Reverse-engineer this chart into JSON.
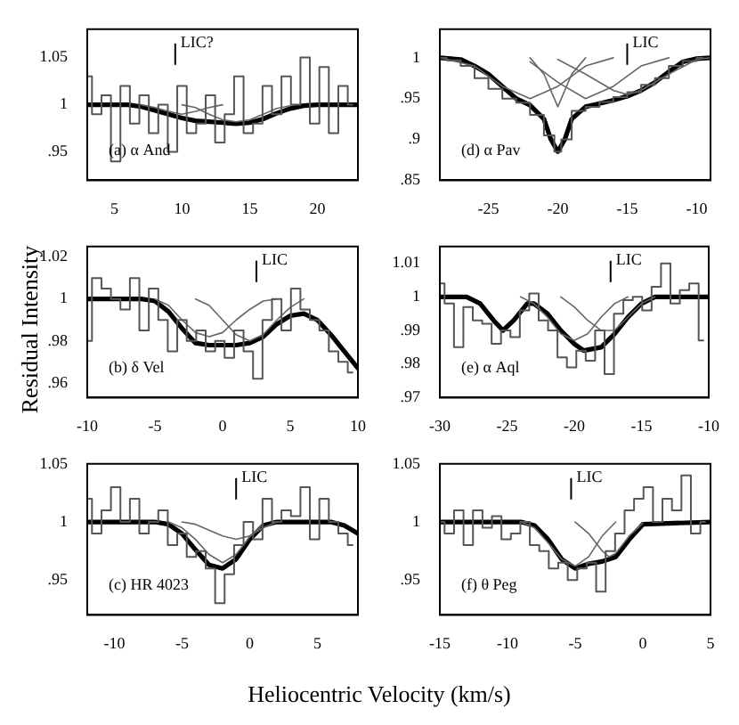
{
  "chart_data": [
    {
      "type": "line",
      "xlim": [
        3,
        23
      ],
      "xticks": [
        5,
        10,
        15,
        20
      ],
      "ylim": [
        0.92,
        1.08
      ],
      "yticks": [
        {
          "value": 0.95,
          "label": ".95"
        },
        1,
        1.05
      ],
      "grid": false,
      "legend": false,
      "annotations": [
        "(a) α And"
      ],
      "ref_lines": [
        {
          "axis": "x",
          "value": 9.5,
          "label": "LIC?"
        }
      ],
      "series": [
        {
          "type": "step",
          "color": "#555555",
          "x": [
            3,
            3.7,
            4.4,
            5.1,
            5.8,
            6.5,
            7.2,
            7.9,
            8.6,
            9.3,
            10,
            10.7,
            11.4,
            12.1,
            12.8,
            13.5,
            14.2,
            14.9,
            15.6,
            16.3,
            17,
            17.7,
            18.4,
            19.1,
            19.8,
            20.5,
            21.2,
            21.9,
            22.6
          ],
          "values": [
            1.03,
            0.99,
            1.01,
            0.94,
            1.02,
            0.98,
            1.01,
            0.97,
            1.0,
            0.95,
            1.02,
            0.97,
            0.98,
            1.01,
            0.96,
            0.99,
            1.03,
            0.97,
            0.98,
            1.02,
            0.99,
            1.03,
            1.0,
            1.05,
            0.98,
            1.04,
            0.97,
            1.02,
            1.0
          ]
        },
        {
          "type": "line",
          "color": "#666666",
          "x": [
            7,
            8,
            9,
            10,
            11,
            12,
            13
          ],
          "values": [
            1,
            0.997,
            0.993,
            0.99,
            0.993,
            0.997,
            1
          ]
        },
        {
          "type": "line",
          "color": "#666666",
          "x": [
            10,
            11,
            12,
            13,
            14,
            15,
            16,
            17,
            18
          ],
          "values": [
            1,
            0.997,
            0.99,
            0.984,
            0.982,
            0.984,
            0.99,
            0.996,
            0.999
          ]
        },
        {
          "type": "line",
          "color": "#000000",
          "x": [
            3,
            6,
            7,
            8,
            9,
            10,
            11,
            12,
            13,
            14,
            15,
            16,
            17,
            18,
            19,
            20,
            23
          ],
          "values": [
            1,
            1,
            0.998,
            0.994,
            0.99,
            0.986,
            0.983,
            0.982,
            0.981,
            0.98,
            0.981,
            0.985,
            0.991,
            0.996,
            0.999,
            1,
            1
          ]
        }
      ]
    },
    {
      "type": "line",
      "xlim": [
        -28.5,
        -9
      ],
      "xticks": [
        -25,
        -20,
        -15,
        -10
      ],
      "ylim": [
        0.85,
        1.035
      ],
      "yticks": [
        {
          "value": 0.85,
          "label": ".85"
        },
        {
          "value": 0.9,
          "label": ".9"
        },
        {
          "value": 0.95,
          "label": ".95"
        },
        1
      ],
      "grid": false,
      "legend": false,
      "annotations": [
        "(d) α Pav"
      ],
      "ref_lines": [
        {
          "axis": "x",
          "value": -15,
          "label": "LIC"
        }
      ],
      "series": [
        {
          "type": "step",
          "color": "#555555",
          "x": [
            -28.5,
            -27.5,
            -26.5,
            -25.5,
            -24.5,
            -23.5,
            -22.5,
            -21.5,
            -20.5,
            -20,
            -19.5,
            -18.5,
            -17.5,
            -16.5,
            -15.5,
            -14.5,
            -13.5,
            -12.5,
            -11.5,
            -10.5,
            -9.5
          ],
          "values": [
            1.0,
            0.997,
            0.99,
            0.975,
            0.962,
            0.95,
            0.945,
            0.93,
            0.905,
            0.885,
            0.9,
            0.935,
            0.94,
            0.946,
            0.952,
            0.958,
            0.967,
            0.975,
            0.99,
            0.996,
            1.0
          ]
        },
        {
          "type": "line",
          "color": "#666666",
          "x": [
            -28.5,
            -26,
            -24,
            -22,
            -20,
            -18,
            -16
          ],
          "values": [
            1,
            0.99,
            0.965,
            0.95,
            0.965,
            0.99,
            1
          ]
        },
        {
          "type": "line",
          "color": "#666666",
          "x": [
            -22,
            -21,
            -20,
            -19,
            -18
          ],
          "values": [
            1,
            0.98,
            0.94,
            0.98,
            1
          ]
        },
        {
          "type": "line",
          "color": "#666666",
          "x": [
            -22,
            -20,
            -18,
            -16,
            -14,
            -12
          ],
          "values": [
            0.995,
            0.97,
            0.95,
            0.965,
            0.99,
            1
          ]
        },
        {
          "type": "line",
          "color": "#666666",
          "x": [
            -20,
            -18,
            -16,
            -15,
            -14,
            -12,
            -10,
            -9
          ],
          "values": [
            0.998,
            0.98,
            0.96,
            0.955,
            0.96,
            0.98,
            0.998,
            1
          ]
        },
        {
          "type": "line",
          "color": "#000000",
          "x": [
            -28.5,
            -27,
            -26,
            -25,
            -24,
            -23,
            -22,
            -21,
            -20.5,
            -20,
            -19.5,
            -19,
            -18,
            -17,
            -16,
            -15,
            -14,
            -13,
            -12,
            -11,
            -10,
            -9
          ],
          "values": [
            1,
            0.998,
            0.99,
            0.98,
            0.965,
            0.95,
            0.942,
            0.925,
            0.9,
            0.885,
            0.9,
            0.925,
            0.94,
            0.944,
            0.948,
            0.953,
            0.96,
            0.97,
            0.983,
            0.995,
            0.999,
            1
          ]
        }
      ]
    },
    {
      "type": "line",
      "ylabel": "Residual Intensity",
      "xlim": [
        -10,
        10
      ],
      "xticks": [
        -10,
        -5,
        0,
        5,
        10
      ],
      "ylim": [
        0.953,
        1.025
      ],
      "yticks": [
        {
          "value": 0.96,
          "label": ".96"
        },
        {
          "value": 0.98,
          "label": ".98"
        },
        1,
        1.02
      ],
      "grid": false,
      "legend": false,
      "annotations": [
        "(b) δ Vel"
      ],
      "ref_lines": [
        {
          "axis": "x",
          "value": 2.5,
          "label": "LIC"
        }
      ],
      "series": [
        {
          "type": "step",
          "color": "#555555",
          "x": [
            -10,
            -9.3,
            -8.6,
            -7.9,
            -7.2,
            -6.5,
            -5.8,
            -5.1,
            -4.4,
            -3.7,
            -3,
            -2.3,
            -1.6,
            -0.9,
            -0.2,
            0.5,
            1.2,
            1.9,
            2.6,
            3.3,
            4,
            4.7,
            5.4,
            6.1,
            6.8,
            7.5,
            8.2,
            8.9,
            9.6
          ],
          "values": [
            0.98,
            1.01,
            1.005,
            1.0,
            0.995,
            1.01,
            0.985,
            1.005,
            0.99,
            0.975,
            0.99,
            0.98,
            0.985,
            0.975,
            0.98,
            0.972,
            0.985,
            0.975,
            0.962,
            0.99,
            1.0,
            0.985,
            1.005,
            0.995,
            0.99,
            0.985,
            0.975,
            0.97,
            0.965
          ]
        },
        {
          "type": "line",
          "color": "#666666",
          "x": [
            -5,
            -4,
            -3,
            -2,
            -1,
            0,
            1,
            2,
            3,
            4
          ],
          "values": [
            1,
            0.997,
            0.99,
            0.984,
            0.982,
            0.984,
            0.99,
            0.995,
            0.999,
            1
          ]
        },
        {
          "type": "line",
          "color": "#666666",
          "x": [
            -2,
            -1,
            0,
            1,
            2,
            3,
            4,
            5,
            6
          ],
          "values": [
            1,
            0.997,
            0.99,
            0.983,
            0.98,
            0.983,
            0.99,
            0.996,
            1
          ]
        },
        {
          "type": "line",
          "color": "#000000",
          "x": [
            -10,
            -6,
            -5,
            -4,
            -3,
            -2,
            -1,
            0,
            1,
            2,
            3,
            4,
            5,
            6,
            7,
            8,
            9,
            10
          ],
          "values": [
            1,
            1,
            0.999,
            0.994,
            0.986,
            0.979,
            0.978,
            0.978,
            0.978,
            0.979,
            0.982,
            0.988,
            0.992,
            0.993,
            0.99,
            0.983,
            0.975,
            0.967
          ]
        }
      ]
    },
    {
      "type": "line",
      "xlim": [
        -30,
        -10
      ],
      "xticks": [
        -30,
        -25,
        -20,
        -15,
        -10
      ],
      "ylim": [
        0.97,
        1.015
      ],
      "yticks": [
        {
          "value": 0.97,
          "label": ".97"
        },
        {
          "value": 0.98,
          "label": ".98"
        },
        {
          "value": 0.99,
          "label": ".99"
        },
        1,
        1.01
      ],
      "grid": false,
      "legend": false,
      "annotations": [
        "(e) α Aql"
      ],
      "ref_lines": [
        {
          "axis": "x",
          "value": -17.3,
          "label": "LIC"
        }
      ],
      "series": [
        {
          "type": "step",
          "color": "#555555",
          "x": [
            -30,
            -29.3,
            -28.6,
            -27.9,
            -27.2,
            -26.5,
            -25.8,
            -25.1,
            -24.4,
            -23.7,
            -23,
            -22.3,
            -21.6,
            -20.9,
            -20.2,
            -19.5,
            -18.8,
            -18.1,
            -17.4,
            -16.7,
            -16,
            -15.3,
            -14.6,
            -13.9,
            -13.2,
            -12.5,
            -11.8,
            -11.1,
            -10.4
          ],
          "values": [
            1.004,
            0.998,
            0.985,
            0.997,
            0.993,
            0.992,
            0.986,
            0.99,
            0.988,
            0.996,
            1.001,
            0.993,
            0.99,
            0.982,
            0.979,
            0.984,
            0.981,
            0.99,
            0.977,
            0.995,
            0.999,
            1.0,
            0.996,
            1.003,
            1.01,
            0.998,
            1.002,
            1.004,
            0.987
          ]
        },
        {
          "type": "line",
          "color": "#666666",
          "x": [
            -24,
            -23,
            -22,
            -21,
            -20,
            -19,
            -18,
            -17,
            -16
          ],
          "values": [
            1,
            0.998,
            0.994,
            0.989,
            0.987,
            0.989,
            0.994,
            0.998,
            1
          ]
        },
        {
          "type": "line",
          "color": "#666666",
          "x": [
            -21,
            -20,
            -19,
            -18,
            -17.5,
            -17,
            -16,
            -15,
            -14
          ],
          "values": [
            1,
            0.997,
            0.993,
            0.99,
            0.99,
            0.99,
            0.994,
            0.998,
            1
          ]
        },
        {
          "type": "line",
          "color": "#000000",
          "x": [
            -30,
            -28,
            -27,
            -26,
            -25.3,
            -24.5,
            -23.5,
            -23,
            -22,
            -21,
            -20,
            -19.3,
            -18,
            -17,
            -16,
            -15,
            -14,
            -13,
            -10
          ],
          "values": [
            1,
            1,
            0.998,
            0.993,
            0.99,
            0.993,
            0.998,
            0.998,
            0.995,
            0.99,
            0.986,
            0.984,
            0.985,
            0.989,
            0.994,
            0.998,
            1,
            1,
            1
          ]
        }
      ]
    },
    {
      "type": "line",
      "xlabel": "Heliocentric Velocity (km/s)",
      "xlim": [
        -12,
        8
      ],
      "xticks": [
        -10,
        -5,
        0,
        5
      ],
      "ylim": [
        0.92,
        1.05
      ],
      "yticks": [
        {
          "value": 0.95,
          "label": ".95"
        },
        1,
        1.05
      ],
      "grid": false,
      "legend": false,
      "annotations": [
        "(c) HR 4023"
      ],
      "ref_lines": [
        {
          "axis": "x",
          "value": -1,
          "label": "LIC"
        }
      ],
      "series": [
        {
          "type": "step",
          "color": "#555555",
          "x": [
            -12,
            -11.3,
            -10.6,
            -9.9,
            -9.2,
            -8.5,
            -7.8,
            -7.1,
            -6.4,
            -5.7,
            -5,
            -4.3,
            -3.6,
            -2.9,
            -2.2,
            -1.5,
            -0.8,
            -0.1,
            0.6,
            1.3,
            2,
            2.7,
            3.4,
            4.1,
            4.8,
            5.5,
            6.2,
            6.9,
            7.6
          ],
          "values": [
            1.02,
            0.99,
            1.01,
            1.03,
            1.0,
            1.02,
            0.99,
            1.0,
            1.01,
            0.98,
            0.99,
            0.97,
            0.975,
            0.96,
            0.93,
            0.955,
            0.98,
            1.0,
            0.985,
            1.02,
            1.0,
            1.01,
            1.005,
            1.03,
            0.985,
            1.02,
            1.0,
            0.99,
            0.98
          ]
        },
        {
          "type": "line",
          "color": "#666666",
          "x": [
            -6,
            -5,
            -4,
            -3,
            -2,
            -1,
            0,
            1
          ],
          "values": [
            1,
            0.995,
            0.985,
            0.972,
            0.965,
            0.972,
            0.987,
            0.998
          ]
        },
        {
          "type": "line",
          "color": "#666666",
          "x": [
            -5,
            -4,
            -3,
            -2,
            -1,
            0,
            1,
            2
          ],
          "values": [
            1,
            0.998,
            0.993,
            0.988,
            0.985,
            0.988,
            0.995,
            1
          ]
        },
        {
          "type": "line",
          "color": "#000000",
          "x": [
            -12,
            -7,
            -6,
            -5,
            -4,
            -3,
            -2,
            -1,
            0,
            1,
            2,
            6,
            7,
            8
          ],
          "values": [
            1,
            1,
            0.998,
            0.99,
            0.976,
            0.963,
            0.96,
            0.968,
            0.985,
            0.997,
            1,
            1,
            0.997,
            0.99
          ]
        }
      ]
    },
    {
      "type": "line",
      "xlim": [
        -15,
        5
      ],
      "xticks": [
        -15,
        -10,
        -5,
        0,
        5
      ],
      "ylim": [
        0.92,
        1.05
      ],
      "yticks": [
        {
          "value": 0.95,
          "label": ".95"
        },
        1,
        1.05
      ],
      "grid": false,
      "legend": false,
      "annotations": [
        "(f) θ Peg"
      ],
      "ref_lines": [
        {
          "axis": "x",
          "value": -5.3,
          "label": "LIC"
        }
      ],
      "series": [
        {
          "type": "step",
          "color": "#555555",
          "x": [
            -15,
            -14.3,
            -13.6,
            -12.9,
            -12.2,
            -11.5,
            -10.8,
            -10.1,
            -9.4,
            -8.7,
            -8,
            -7.3,
            -6.6,
            -5.9,
            -5.2,
            -4.5,
            -3.8,
            -3.1,
            -2.4,
            -1.7,
            -1,
            -0.3,
            0.4,
            1.1,
            1.8,
            2.5,
            3.2,
            3.9,
            4.6
          ],
          "values": [
            1.0,
            0.99,
            1.01,
            0.98,
            1.01,
            0.995,
            1.005,
            0.985,
            0.99,
            1.0,
            0.98,
            0.975,
            0.96,
            0.965,
            0.95,
            0.96,
            0.965,
            0.94,
            0.975,
            0.99,
            1.01,
            1.02,
            1.03,
            1.0,
            1.02,
            1.01,
            1.04,
            0.99,
            1.0
          ]
        },
        {
          "type": "line",
          "color": "#666666",
          "x": [
            -9,
            -8,
            -7,
            -6,
            -5,
            -4,
            -3,
            -2
          ],
          "values": [
            1,
            0.995,
            0.982,
            0.968,
            0.962,
            0.97,
            0.988,
            1
          ]
        },
        {
          "type": "line",
          "color": "#666666",
          "x": [
            -5,
            -4,
            -3,
            -2.5,
            -2,
            -1,
            0
          ],
          "values": [
            1,
            0.99,
            0.975,
            0.97,
            0.973,
            0.988,
            0.999
          ]
        },
        {
          "type": "line",
          "color": "#000000",
          "x": [
            -15,
            -9,
            -8,
            -7,
            -6,
            -5,
            -4,
            -3,
            -2,
            -1,
            0,
            5
          ],
          "values": [
            1,
            1,
            0.997,
            0.985,
            0.968,
            0.96,
            0.964,
            0.966,
            0.97,
            0.985,
            0.998,
            1
          ]
        }
      ]
    }
  ]
}
